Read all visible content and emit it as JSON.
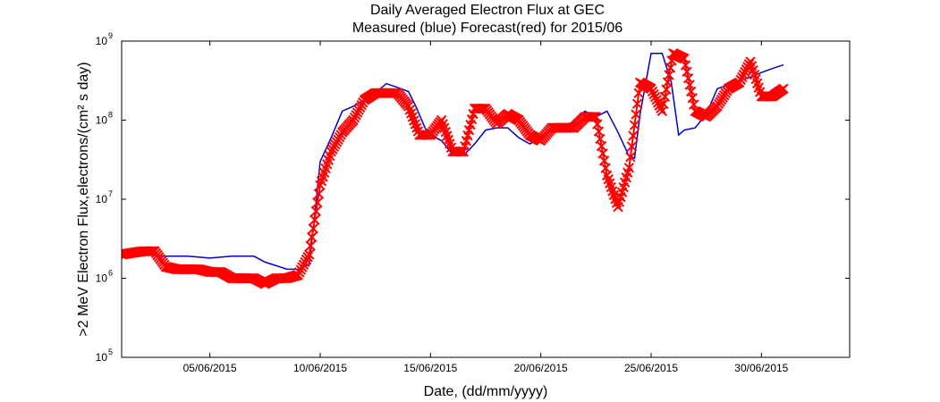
{
  "chart_data": {
    "type": "line",
    "title": "Daily Averaged Electron Flux at GEC",
    "subtitle": "Measured (blue) Forecast(red) for 2015/06",
    "xlabel": "Date, (dd/mm/yyyy)",
    "ylabel": ">2 MeV Electron Flux,electrons/(cm² s day)",
    "x_scale": "date",
    "y_scale": "log",
    "xlim": [
      "2015-06-01",
      "2015-07-04"
    ],
    "ylim": [
      100000,
      1000000000
    ],
    "x_ticks": [
      {
        "date": "2015-06-05",
        "label": "05/06/2015"
      },
      {
        "date": "2015-06-10",
        "label": "10/06/2015"
      },
      {
        "date": "2015-06-15",
        "label": "15/06/2015"
      },
      {
        "date": "2015-06-20",
        "label": "20/06/2015"
      },
      {
        "date": "2015-06-25",
        "label": "25/06/2015"
      },
      {
        "date": "2015-06-30",
        "label": "30/06/2015"
      }
    ],
    "y_ticks": [
      {
        "value": 100000,
        "label": "10",
        "exp": "5"
      },
      {
        "value": 1000000,
        "label": "10",
        "exp": "6"
      },
      {
        "value": 10000000,
        "label": "10",
        "exp": "7"
      },
      {
        "value": 100000000,
        "label": "10",
        "exp": "8"
      },
      {
        "value": 1000000000,
        "label": "10",
        "exp": "9"
      }
    ],
    "grid": false,
    "series": [
      {
        "color": "#0000cc",
        "marker": "line",
        "points": [
          [
            "2015-06-01 00:00",
            2000000.0
          ],
          [
            "2015-06-02 00:00",
            2000000.0
          ],
          [
            "2015-06-03 00:00",
            1900000.0
          ],
          [
            "2015-06-04 00:00",
            1900000.0
          ],
          [
            "2015-06-05 00:00",
            1800000.0
          ],
          [
            "2015-06-06 00:00",
            1900000.0
          ],
          [
            "2015-06-07 00:00",
            1900000.0
          ],
          [
            "2015-06-07 12:00",
            1600000.0
          ],
          [
            "2015-06-08 12:00",
            1300000.0
          ],
          [
            "2015-06-09 00:00",
            1300000.0
          ],
          [
            "2015-06-09 12:00",
            1500000.0
          ],
          [
            "2015-06-09 18:00",
            6000000.0
          ],
          [
            "2015-06-10 00:00",
            30000000.0
          ],
          [
            "2015-06-10 12:00",
            60000000.0
          ],
          [
            "2015-06-11 00:00",
            130000000.0
          ],
          [
            "2015-06-11 12:00",
            150000000.0
          ],
          [
            "2015-06-12 00:00",
            180000000.0
          ],
          [
            "2015-06-12 12:00",
            220000000.0
          ],
          [
            "2015-06-13 00:00",
            290000000.0
          ],
          [
            "2015-06-13 12:00",
            260000000.0
          ],
          [
            "2015-06-14 00:00",
            230000000.0
          ],
          [
            "2015-06-14 08:00",
            150000000.0
          ],
          [
            "2015-06-14 18:00",
            80000000.0
          ],
          [
            "2015-06-15 00:00",
            65000000.0
          ],
          [
            "2015-06-15 12:00",
            55000000.0
          ],
          [
            "2015-06-16 00:00",
            37000000.0
          ],
          [
            "2015-06-16 12:00",
            36000000.0
          ],
          [
            "2015-06-17 00:00",
            50000000.0
          ],
          [
            "2015-06-17 12:00",
            75000000.0
          ],
          [
            "2015-06-18 00:00",
            80000000.0
          ],
          [
            "2015-06-18 12:00",
            80000000.0
          ],
          [
            "2015-06-19 00:00",
            60000000.0
          ],
          [
            "2015-06-19 12:00",
            50000000.0
          ],
          [
            "2015-06-20 00:00",
            60000000.0
          ],
          [
            "2015-06-20 12:00",
            80000000.0
          ],
          [
            "2015-06-21 00:00",
            85000000.0
          ],
          [
            "2015-06-21 12:00",
            95000000.0
          ],
          [
            "2015-06-22 00:00",
            130000000.0
          ],
          [
            "2015-06-22 12:00",
            110000000.0
          ],
          [
            "2015-06-23 00:00",
            130000000.0
          ],
          [
            "2015-06-23 12:00",
            70000000.0
          ],
          [
            "2015-06-24 00:00",
            35000000.0
          ],
          [
            "2015-06-24 06:00",
            33000000.0
          ],
          [
            "2015-06-24 12:00",
            120000000.0
          ],
          [
            "2015-06-25 00:00",
            700000000.0
          ],
          [
            "2015-06-25 12:00",
            700000000.0
          ],
          [
            "2015-06-25 22:00",
            300000000.0
          ],
          [
            "2015-06-26 06:00",
            65000000.0
          ],
          [
            "2015-06-26 12:00",
            75000000.0
          ],
          [
            "2015-06-27 00:00",
            80000000.0
          ],
          [
            "2015-06-27 12:00",
            120000000.0
          ],
          [
            "2015-06-28 00:00",
            250000000.0
          ],
          [
            "2015-06-28 12:00",
            280000000.0
          ],
          [
            "2015-06-29 00:00",
            320000000.0
          ],
          [
            "2015-06-29 12:00",
            350000000.0
          ],
          [
            "2015-06-30 00:00",
            400000000.0
          ],
          [
            "2015-06-30 12:00",
            450000000.0
          ],
          [
            "2015-07-01 00:00",
            500000000.0
          ]
        ]
      },
      {
        "color": "#ff0000",
        "marker": "x",
        "points": [
          [
            "2015-06-01 00:00",
            2000000.0
          ],
          [
            "2015-06-01 12:00",
            2100000.0
          ],
          [
            "2015-06-02 00:00",
            2200000.0
          ],
          [
            "2015-06-02 12:00",
            2200000.0
          ],
          [
            "2015-06-03 00:00",
            1400000.0
          ],
          [
            "2015-06-03 12:00",
            1300000.0
          ],
          [
            "2015-06-04 00:00",
            1300000.0
          ],
          [
            "2015-06-04 12:00",
            1300000.0
          ],
          [
            "2015-06-05 00:00",
            1200000.0
          ],
          [
            "2015-06-05 12:00",
            1200000.0
          ],
          [
            "2015-06-06 00:00",
            1000000.0
          ],
          [
            "2015-06-06 12:00",
            1000000.0
          ],
          [
            "2015-06-07 00:00",
            1000000.0
          ],
          [
            "2015-06-07 12:00",
            850000.0
          ],
          [
            "2015-06-08 00:00",
            1000000.0
          ],
          [
            "2015-06-08 12:00",
            1000000.0
          ],
          [
            "2015-06-09 00:00",
            1100000.0
          ],
          [
            "2015-06-09 12:00",
            2000000.0
          ],
          [
            "2015-06-10 00:00",
            15000000.0
          ],
          [
            "2015-06-10 12:00",
            40000000.0
          ],
          [
            "2015-06-11 00:00",
            70000000.0
          ],
          [
            "2015-06-11 12:00",
            100000000.0
          ],
          [
            "2015-06-12 00:00",
            180000000.0
          ],
          [
            "2015-06-12 12:00",
            220000000.0
          ],
          [
            "2015-06-13 00:00",
            220000000.0
          ],
          [
            "2015-06-13 12:00",
            220000000.0
          ],
          [
            "2015-06-14 00:00",
            150000000.0
          ],
          [
            "2015-06-14 12:00",
            65000000.0
          ],
          [
            "2015-06-15 00:00",
            65000000.0
          ],
          [
            "2015-06-15 12:00",
            100000000.0
          ],
          [
            "2015-06-16 00:00",
            40000000.0
          ],
          [
            "2015-06-16 12:00",
            40000000.0
          ],
          [
            "2015-06-17 00:00",
            140000000.0
          ],
          [
            "2015-06-17 12:00",
            140000000.0
          ],
          [
            "2015-06-18 00:00",
            90000000.0
          ],
          [
            "2015-06-18 12:00",
            120000000.0
          ],
          [
            "2015-06-19 00:00",
            100000000.0
          ],
          [
            "2015-06-19 12:00",
            65000000.0
          ],
          [
            "2015-06-20 00:00",
            55000000.0
          ],
          [
            "2015-06-20 12:00",
            80000000.0
          ],
          [
            "2015-06-21 00:00",
            80000000.0
          ],
          [
            "2015-06-21 12:00",
            80000000.0
          ],
          [
            "2015-06-22 00:00",
            110000000.0
          ],
          [
            "2015-06-22 12:00",
            110000000.0
          ],
          [
            "2015-06-23 00:00",
            20000000.0
          ],
          [
            "2015-06-23 12:00",
            8000000.0
          ],
          [
            "2015-06-24 00:00",
            25000000.0
          ],
          [
            "2015-06-24 12:00",
            300000000.0
          ],
          [
            "2015-06-25 00:00",
            250000000.0
          ],
          [
            "2015-06-25 12:00",
            130000000.0
          ],
          [
            "2015-06-26 00:00",
            700000000.0
          ],
          [
            "2015-06-26 12:00",
            600000000.0
          ],
          [
            "2015-06-27 00:00",
            130000000.0
          ],
          [
            "2015-06-27 12:00",
            110000000.0
          ],
          [
            "2015-06-28 00:00",
            150000000.0
          ],
          [
            "2015-06-28 12:00",
            250000000.0
          ],
          [
            "2015-06-29 00:00",
            300000000.0
          ],
          [
            "2015-06-29 12:00",
            550000000.0
          ],
          [
            "2015-06-30 00:00",
            200000000.0
          ],
          [
            "2015-06-30 12:00",
            200000000.0
          ],
          [
            "2015-07-01 00:00",
            250000000.0
          ]
        ]
      }
    ]
  }
}
